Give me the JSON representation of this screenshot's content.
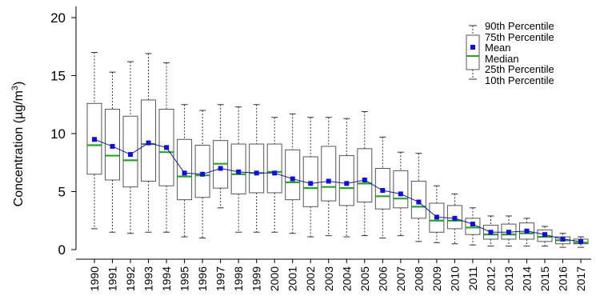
{
  "chart_data": {
    "type": "boxplot",
    "ylabel": "Concentration (µg/m3)",
    "ylabel_main": "Concentration (",
    "ylabel_unit_mu": "µ",
    "ylabel_unit_g": "g/m",
    "ylabel_unit_exp": "3",
    "ylabel_close": ")",
    "ylim": [
      0,
      20
    ],
    "yticks": [
      "0",
      "5",
      "10",
      "15",
      "20"
    ],
    "categories": [
      "1990",
      "1991",
      "1992",
      "1993",
      "1994",
      "1995",
      "1996",
      "1997",
      "1998",
      "1999",
      "2000",
      "2001",
      "2002",
      "2003",
      "2004",
      "2005",
      "2006",
      "2007",
      "2008",
      "2009",
      "2010",
      "2011",
      "2012",
      "2013",
      "2014",
      "2015",
      "2016",
      "2017"
    ],
    "p10": [
      1.8,
      1.5,
      1.4,
      1.5,
      1.5,
      1.1,
      1.0,
      3.6,
      1.5,
      1.5,
      1.5,
      1.4,
      1.1,
      1.2,
      1.1,
      1.2,
      1.0,
      1.2,
      0.7,
      0.6,
      0.5,
      0.4,
      0.3,
      0.3,
      0.3,
      0.3,
      0.2,
      0.2
    ],
    "p25": [
      6.5,
      6.0,
      5.4,
      5.9,
      5.5,
      4.3,
      4.5,
      5.3,
      4.8,
      4.9,
      4.9,
      4.3,
      3.7,
      4.2,
      3.8,
      4.1,
      3.5,
      3.6,
      2.7,
      1.5,
      1.8,
      1.3,
      0.9,
      0.9,
      0.9,
      0.7,
      0.5,
      0.5
    ],
    "median": [
      9.0,
      8.1,
      7.7,
      9.1,
      8.4,
      6.3,
      6.4,
      7.4,
      6.5,
      6.6,
      6.7,
      5.8,
      5.3,
      5.4,
      5.3,
      5.7,
      4.6,
      4.4,
      3.7,
      2.5,
      2.5,
      1.9,
      1.3,
      1.3,
      1.4,
      1.1,
      0.8,
      0.6
    ],
    "mean": [
      9.5,
      8.9,
      8.2,
      9.2,
      8.8,
      6.6,
      6.5,
      7.0,
      6.7,
      6.6,
      6.6,
      6.1,
      5.7,
      5.9,
      5.7,
      6.0,
      5.1,
      4.8,
      4.1,
      2.8,
      2.7,
      2.2,
      1.5,
      1.5,
      1.6,
      1.3,
      0.9,
      0.7
    ],
    "p75": [
      12.6,
      12.1,
      11.5,
      12.9,
      12.1,
      9.5,
      9.0,
      9.4,
      9.1,
      9.1,
      9.1,
      8.6,
      8.0,
      8.9,
      8.1,
      8.7,
      7.0,
      6.8,
      5.9,
      4.0,
      3.8,
      2.7,
      2.1,
      2.2,
      2.3,
      1.7,
      1.1,
      0.9
    ],
    "p90": [
      17.0,
      15.3,
      16.2,
      16.9,
      16.1,
      12.5,
      12.0,
      12.5,
      12.3,
      12.5,
      11.4,
      11.7,
      11.4,
      11.4,
      11.3,
      11.9,
      9.7,
      8.4,
      8.3,
      5.5,
      4.8,
      3.6,
      2.9,
      2.9,
      2.7,
      2.0,
      1.4,
      1.1
    ]
  },
  "legend": {
    "items": [
      "90th Percentile",
      "75th Percentile",
      "Mean",
      "Median",
      "25th Percentile",
      "10th Percentile"
    ]
  },
  "colors": {
    "median": "#2ca02c",
    "mean": "#1010d8",
    "box": "#555555",
    "whisker": "#333333",
    "axis": "#000000"
  }
}
